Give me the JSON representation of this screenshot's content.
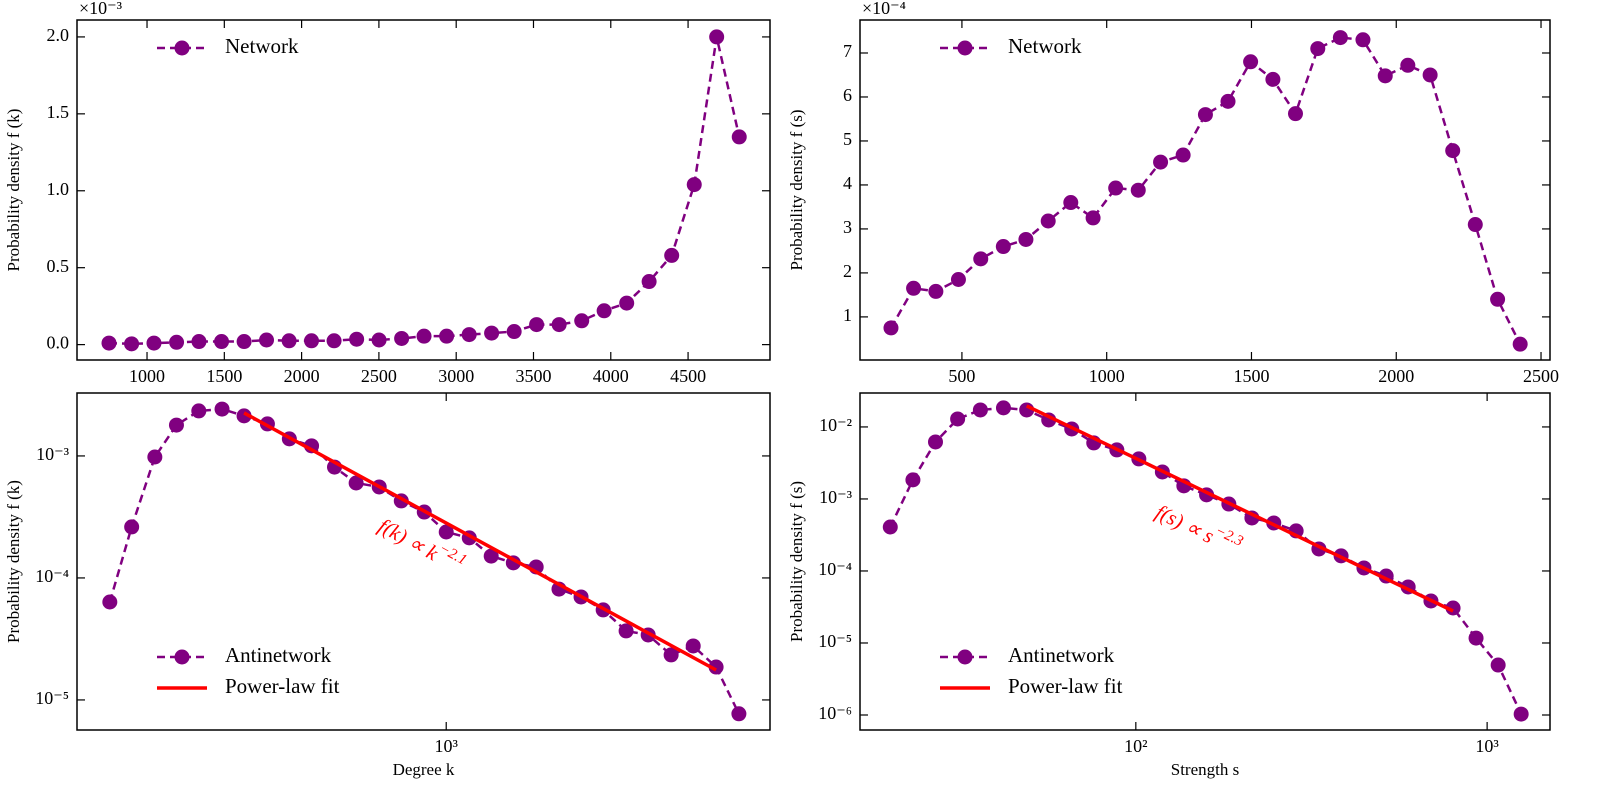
{
  "chart_data": [
    {
      "type": "line",
      "ylabel": "Probability density f (k)",
      "y_offset_text": "×10⁻³",
      "legend": "upper left",
      "xlim": [
        547,
        5030
      ],
      "ylim": [
        -0.1,
        2.11
      ],
      "xticks": [
        1000,
        1500,
        2000,
        2500,
        3000,
        3500,
        4000,
        4500
      ],
      "yticks": [
        {
          "value": 0,
          "label": "0.0"
        },
        {
          "value": 0.5,
          "label": "0.5"
        },
        {
          "value": 1,
          "label": "1.0"
        },
        {
          "value": 1.5,
          "label": "1.5"
        },
        {
          "value": 2,
          "label": "2.0"
        }
      ],
      "series": [
        {
          "name": "Network",
          "color": "#800080",
          "style": "dashed-marker",
          "x": [
            754,
            900,
            1045,
            1191,
            1336,
            1482,
            1628,
            1773,
            1919,
            2064,
            2210,
            2356,
            2501,
            2647,
            2792,
            2938,
            3084,
            3229,
            3375,
            3520,
            3666,
            3812,
            3957,
            4103,
            4248,
            4394,
            4540,
            4685,
            4831
          ],
          "values": [
            0.01,
            0.005,
            0.01,
            0.015,
            0.02,
            0.02,
            0.02,
            0.03,
            0.025,
            0.025,
            0.025,
            0.035,
            0.03,
            0.04,
            0.055,
            0.055,
            0.065,
            0.075,
            0.085,
            0.13,
            0.13,
            0.155,
            0.22,
            0.27,
            0.41,
            0.58,
            1.04,
            2.0,
            1.35
          ]
        }
      ]
    },
    {
      "type": "line",
      "ylabel": "Probability density f (s)",
      "y_offset_text": "×10⁻⁴",
      "legend": "upper left",
      "xlim": [
        148,
        2531
      ],
      "ylim": [
        0.02,
        7.75
      ],
      "xticks": [
        500,
        1000,
        1500,
        2000,
        2500
      ],
      "yticks": [
        1,
        2,
        3,
        4,
        5,
        6,
        7
      ],
      "series": [
        {
          "name": "Network",
          "color": "#800080",
          "style": "dashed-marker",
          "x": [
            255,
            333,
            410,
            488,
            565,
            643,
            721,
            798,
            876,
            953,
            1031,
            1109,
            1186,
            1264,
            1341,
            1419,
            1497,
            1574,
            1652,
            1729,
            1807,
            1885,
            1962,
            2040,
            2117,
            2195,
            2273,
            2350,
            2428
          ],
          "values": [
            0.75,
            1.65,
            1.58,
            1.85,
            2.32,
            2.6,
            2.76,
            3.18,
            3.6,
            3.25,
            3.93,
            3.88,
            4.52,
            4.68,
            5.6,
            5.9,
            6.8,
            6.4,
            5.62,
            7.1,
            7.35,
            7.3,
            6.48,
            6.72,
            6.5,
            4.78,
            3.1,
            1.4,
            0.38
          ]
        }
      ]
    },
    {
      "type": "line",
      "xlabel": "Degree k",
      "ylabel": "Probability density f (k)",
      "legend": "lower left",
      "xscale": "log",
      "yscale": "log",
      "xlim": [
        170,
        4730
      ],
      "ylim": [
        5.67e-06,
        0.00328
      ],
      "xticks": [
        {
          "value": 1000,
          "label": "10³"
        }
      ],
      "yticks": [
        {
          "value": 0.001,
          "label": "10⁻³"
        },
        {
          "value": 0.0001,
          "label": "10⁻⁴"
        },
        {
          "value": 1e-05,
          "label": "10⁻⁵"
        }
      ],
      "annotation": {
        "text": "f(k) ∝ k",
        "exponent": "−2.1",
        "color": "#ff0000"
      },
      "series": [
        {
          "name": "Antinetwork",
          "color": "#800080",
          "style": "dashed-marker",
          "x": [
            199,
            221,
            247,
            274,
            305,
            341,
            379,
            424,
            471,
            524,
            585,
            649,
            725,
            806,
            900,
            1000,
            1117,
            1241,
            1380,
            1540,
            1718,
            1910,
            2124,
            2371,
            2636,
            2943,
            3272,
            3652,
            4074
          ],
          "values": [
            6.35e-05,
            0.000262,
            0.00098,
            0.00179,
            0.00234,
            0.00242,
            0.00213,
            0.00183,
            0.00138,
            0.00121,
            0.00081,
            0.0006,
            0.000557,
            0.000428,
            0.000347,
            0.000238,
            0.000213,
            0.000151,
            0.000133,
            0.000123,
            8.1e-05,
            6.98e-05,
            5.47e-05,
            3.68e-05,
            3.41e-05,
            2.34e-05,
            2.77e-05,
            1.86e-05,
            7.7e-06
          ]
        },
        {
          "name": "Power-law fit",
          "color": "#ff0000",
          "style": "solid",
          "x": [
            379,
            3652
          ],
          "values": [
            0.00225,
            1.76e-05
          ]
        }
      ]
    },
    {
      "type": "line",
      "xlabel": "Strength s",
      "ylabel": "Probability density f (s)",
      "legend": "lower left",
      "xscale": "log",
      "yscale": "log",
      "xlim": [
        16.4,
        1510
      ],
      "ylim": [
        6.19e-07,
        0.0296
      ],
      "xticks": [
        {
          "value": 100,
          "label": "10²"
        },
        {
          "value": 1000,
          "label": "10³"
        }
      ],
      "yticks": [
        {
          "value": 0.01,
          "label": "10⁻²"
        },
        {
          "value": 0.001,
          "label": "10⁻³"
        },
        {
          "value": 0.0001,
          "label": "10⁻⁴"
        },
        {
          "value": 1e-05,
          "label": "10⁻⁵"
        },
        {
          "value": 1e-06,
          "label": "10⁻⁶"
        }
      ],
      "annotation": {
        "text": "f(s) ∝ s",
        "exponent": "−2.3",
        "color": "#ff0000"
      },
      "series": [
        {
          "name": "Antinetwork",
          "color": "#800080",
          "style": "dashed-marker",
          "x": [
            20.0,
            23.2,
            26.9,
            31.1,
            36.1,
            42.0,
            48.9,
            56.5,
            65.7,
            75.9,
            88.3,
            102,
            119,
            137,
            159,
            184,
            214,
            247,
            286,
            332,
            384,
            446,
            516,
            596,
            692,
            800,
            930,
            1075,
            1250
          ],
          "values": [
            0.000408,
            0.00184,
            0.00619,
            0.0129,
            0.0172,
            0.0184,
            0.0172,
            0.0125,
            0.00938,
            0.006,
            0.0048,
            0.0036,
            0.00237,
            0.00152,
            0.00114,
            0.00085,
            0.000545,
            0.000464,
            0.00036,
            0.000202,
            0.000162,
            0.00011,
            8.5e-05,
            6e-05,
            3.83e-05,
            3.06e-05,
            1.17e-05,
            4.94e-06,
            1.03e-06
          ]
        },
        {
          "name": "Power-law fit",
          "color": "#ff0000",
          "style": "solid",
          "x": [
            48.9,
            800
          ],
          "values": [
            0.0196,
            2.78e-05
          ]
        }
      ]
    }
  ]
}
